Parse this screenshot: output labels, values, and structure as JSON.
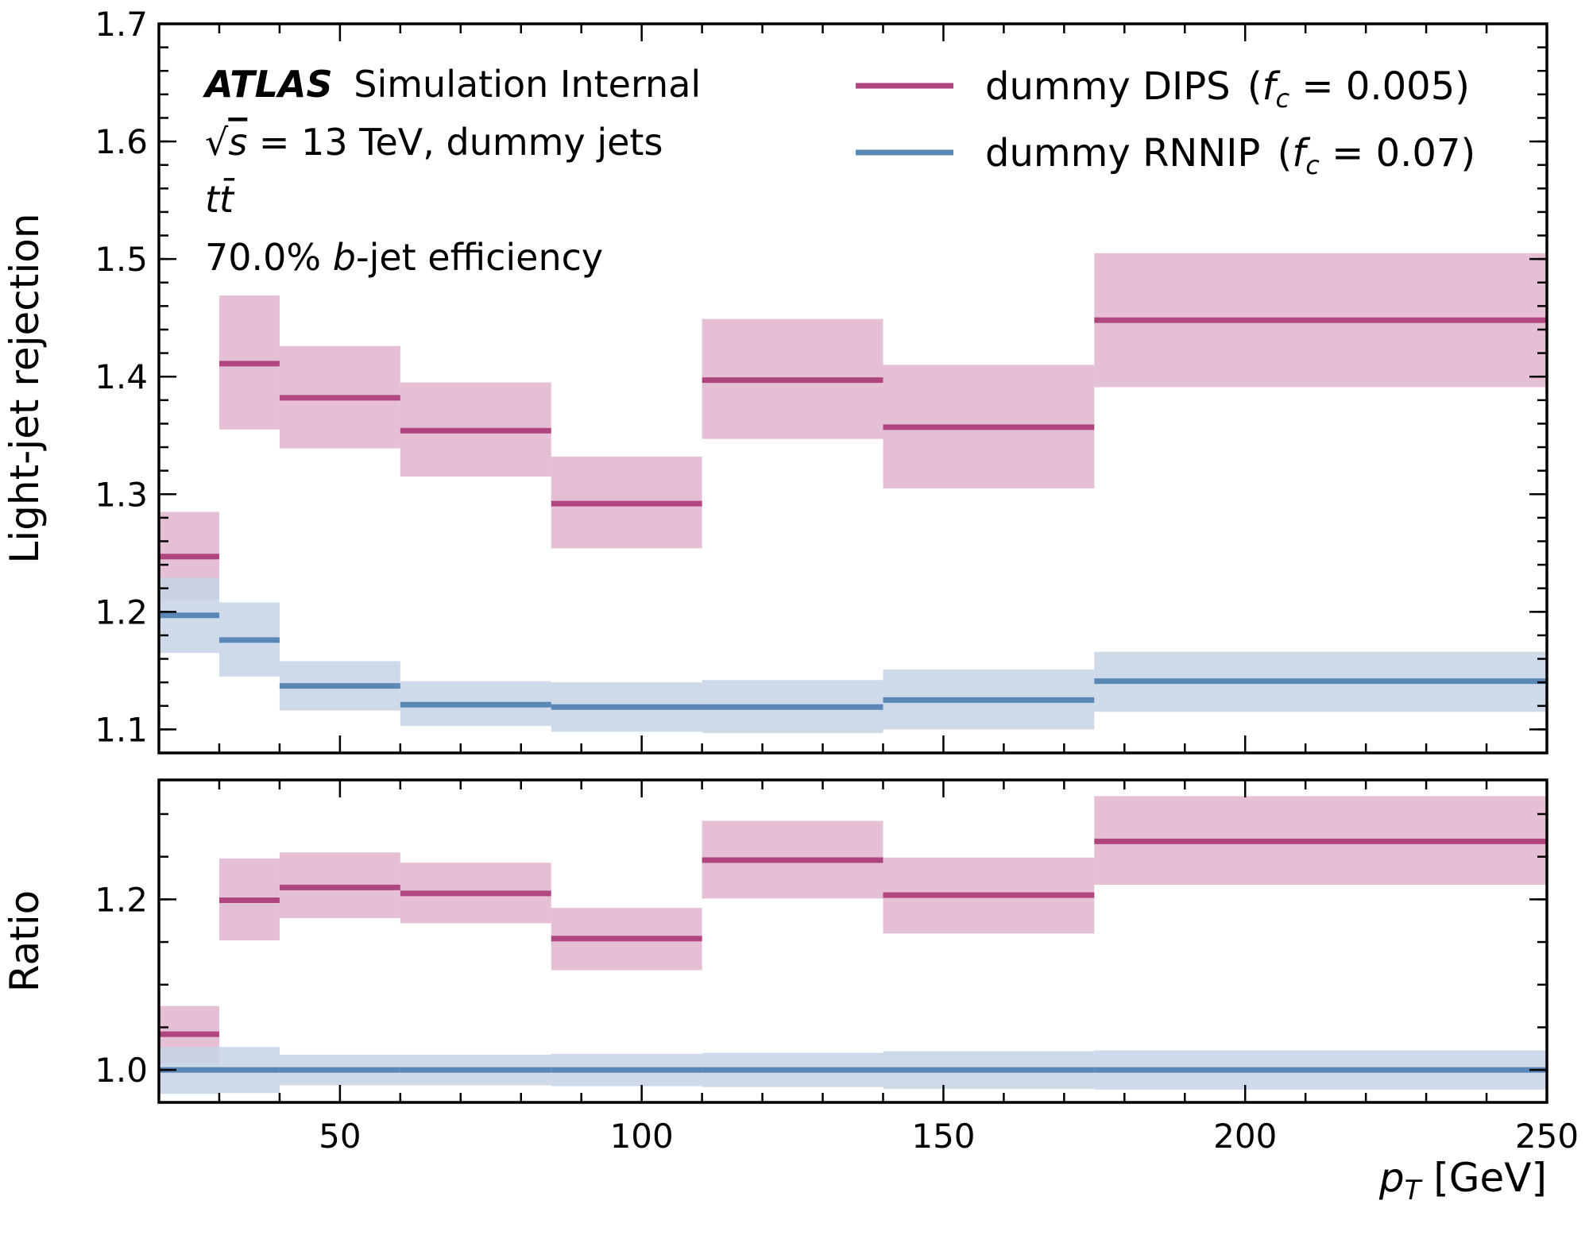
{
  "chart_data": {
    "type": "step",
    "xlabel_main": "p",
    "xlabel_sub": "T",
    "xlabel_unit": " [GeV]",
    "x_ticks": [
      "50",
      "100",
      "150",
      "200",
      "250"
    ],
    "xlim": [
      20,
      250
    ],
    "bin_edges": [
      20,
      30,
      40,
      60,
      85,
      110,
      140,
      175,
      250
    ],
    "annotations": {
      "experiment": "ATLAS",
      "status": "Simulation Internal",
      "energy_prefix": "√",
      "energy_s": "s",
      "energy_suffix": " = 13 TeV, dummy jets",
      "process": "tt̄",
      "wp_prefix": "70.0% ",
      "wp_italic": "b",
      "wp_suffix": "-jet efficiency"
    },
    "series": [
      {
        "name": "dummy DIPS",
        "fc_label": "f",
        "fc_sub": "c",
        "fc_value": " = 0.005",
        "color": "#b0467f",
        "band_color": "#e5bfd4",
        "main": {
          "values": [
            1.247,
            1.411,
            1.382,
            1.354,
            1.292,
            1.397,
            1.357,
            1.448
          ],
          "err_low": [
            1.21,
            1.355,
            1.339,
            1.315,
            1.254,
            1.347,
            1.305,
            1.391
          ],
          "err_high": [
            1.285,
            1.469,
            1.426,
            1.395,
            1.332,
            1.449,
            1.41,
            1.505
          ]
        },
        "ratio": {
          "values": [
            1.042,
            1.199,
            1.214,
            1.207,
            1.154,
            1.246,
            1.205,
            1.268
          ],
          "err_low": [
            1.008,
            1.152,
            1.178,
            1.172,
            1.117,
            1.201,
            1.16,
            1.217
          ],
          "err_high": [
            1.075,
            1.248,
            1.255,
            1.243,
            1.19,
            1.292,
            1.249,
            1.321
          ]
        }
      },
      {
        "name": "dummy RNNIP",
        "fc_label": "f",
        "fc_sub": "c",
        "fc_value": " = 0.07",
        "color": "#5a87b5",
        "band_color": "#c5d4e5",
        "main": {
          "values": [
            1.197,
            1.176,
            1.137,
            1.121,
            1.119,
            1.119,
            1.125,
            1.141
          ],
          "err_low": [
            1.165,
            1.145,
            1.116,
            1.103,
            1.098,
            1.097,
            1.1,
            1.115
          ],
          "err_high": [
            1.229,
            1.208,
            1.158,
            1.141,
            1.14,
            1.142,
            1.151,
            1.166
          ]
        },
        "ratio": {
          "values": [
            1.0,
            1.0,
            1.0,
            1.0,
            1.0,
            1.0,
            1.0,
            1.0
          ],
          "err_low": [
            0.972,
            0.973,
            0.982,
            0.982,
            0.981,
            0.98,
            0.978,
            0.977
          ],
          "err_high": [
            1.027,
            1.027,
            1.018,
            1.018,
            1.019,
            1.02,
            1.022,
            1.023
          ]
        }
      }
    ],
    "main_panel": {
      "ylabel": "Light-jet rejection",
      "ylim": [
        1.08,
        1.7
      ],
      "y_ticks": [
        "1.1",
        "1.2",
        "1.3",
        "1.4",
        "1.5",
        "1.6",
        "1.7"
      ]
    },
    "ratio_panel": {
      "ylabel": "Ratio",
      "ylim": [
        0.962,
        1.34
      ],
      "y_ticks": [
        "1.0",
        "1.2"
      ]
    },
    "legend_position": "upper right",
    "grid": false
  }
}
